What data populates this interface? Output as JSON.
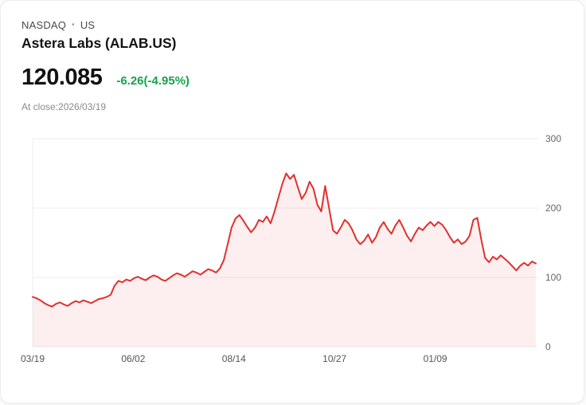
{
  "header": {
    "exchange": "NASDAQ",
    "separator": "•",
    "region": "US",
    "title": "Astera Labs (ALAB.US)",
    "price": "120.085",
    "change": "-6.26(-4.95%)",
    "as_of": "At close:2026/03/19"
  },
  "colors": {
    "line": "#e0312e",
    "area_fill": "rgba(224,49,46,0.08)",
    "change_text": "#17a24c",
    "grid": "#ececec",
    "y_axis_text": "#666666",
    "x_axis_text": "#555555"
  },
  "chart_data": {
    "type": "area",
    "title": "Astera Labs (ALAB.US) one-year price history",
    "xlabel": "",
    "ylabel": "",
    "ylim": [
      0,
      300
    ],
    "y_ticks": [
      0,
      100,
      200,
      300
    ],
    "x_tick_labels": [
      "03/19",
      "06/02",
      "08/14",
      "10/27",
      "01/09"
    ],
    "grid": true,
    "legend": "none",
    "series": [
      {
        "name": "ALAB.US",
        "values": [
          72,
          70,
          67,
          63,
          60,
          58,
          62,
          64,
          61,
          59,
          63,
          66,
          64,
          67,
          65,
          63,
          66,
          69,
          70,
          72,
          75,
          88,
          95,
          93,
          97,
          95,
          99,
          101,
          98,
          96,
          100,
          103,
          101,
          97,
          95,
          99,
          103,
          106,
          104,
          101,
          105,
          109,
          107,
          104,
          108,
          112,
          110,
          107,
          113,
          125,
          148,
          172,
          185,
          190,
          182,
          173,
          165,
          172,
          183,
          180,
          188,
          178,
          195,
          215,
          235,
          250,
          242,
          248,
          230,
          213,
          222,
          238,
          228,
          205,
          195,
          232,
          200,
          168,
          163,
          172,
          183,
          178,
          168,
          155,
          148,
          153,
          162,
          150,
          158,
          172,
          180,
          170,
          163,
          175,
          183,
          172,
          160,
          152,
          163,
          172,
          168,
          175,
          180,
          174,
          180,
          176,
          168,
          158,
          150,
          155,
          148,
          152,
          160,
          183,
          186,
          155,
          128,
          122,
          130,
          126,
          132,
          127,
          122,
          116,
          110,
          117,
          121,
          117,
          123,
          120.085
        ]
      }
    ]
  }
}
